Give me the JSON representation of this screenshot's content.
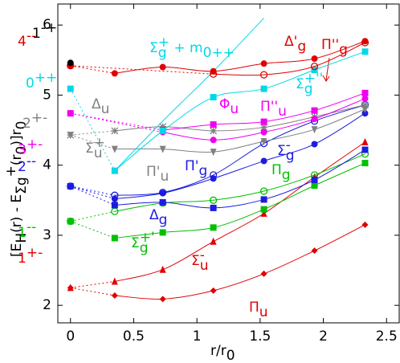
{
  "chart_data": {
    "type": "line",
    "x": [
      0,
      0.35,
      0.73,
      1.13,
      1.53,
      1.93,
      2.33
    ],
    "xlim": [
      -0.1,
      2.6
    ],
    "ylim": [
      1.75,
      6.3
    ],
    "xticks": [
      0,
      0.5,
      1,
      1.5,
      2,
      2.5
    ],
    "yticks": [
      2,
      3,
      4,
      5,
      6
    ],
    "xlabel": [
      {
        "text": "r/r"
      },
      {
        "text": "0",
        "sub": true
      }
    ],
    "ylabel": [
      {
        "text": "[E"
      },
      {
        "text": "H",
        "sub": true
      },
      {
        "text": "(r) - E"
      },
      {
        "text": "Σ",
        "sub": true
      },
      {
        "text": "g",
        "sub": true
      },
      {
        "text": "+",
        "sup": true
      },
      {
        "text": "(r"
      },
      {
        "text": "0",
        "sub": true
      },
      {
        "text": ")]r"
      },
      {
        "text": "0",
        "sub": true
      }
    ],
    "series": [
      {
        "color": "#e00000",
        "marker": "diamond",
        "values": [
          2.25,
          2.14,
          2.09,
          2.21,
          2.45,
          2.78,
          3.15
        ]
      },
      {
        "color": "#e00000",
        "marker": "triangle",
        "values": [
          2.25,
          2.34,
          2.51,
          2.91,
          3.31,
          3.83,
          4.33
        ]
      },
      {
        "color": "#00c000",
        "marker": "square",
        "values": [
          3.2,
          2.96,
          3.04,
          3.11,
          3.37,
          3.71,
          4.03
        ]
      },
      {
        "color": "#00c000",
        "marker": "open-circle",
        "values": [
          3.2,
          3.34,
          3.46,
          3.5,
          3.63,
          3.86,
          4.16
        ]
      },
      {
        "color": "#1c1ce0",
        "marker": "square",
        "values": [
          3.7,
          3.43,
          3.47,
          3.39,
          3.51,
          3.79,
          4.22
        ]
      },
      {
        "color": "#1c1ce0",
        "marker": "circle",
        "values": [
          3.7,
          3.52,
          3.6,
          3.81,
          4.06,
          4.3,
          4.74
        ]
      },
      {
        "color": "#1c1ce0",
        "marker": "open-circle",
        "values": [
          3.7,
          3.57,
          3.61,
          3.86,
          4.31,
          4.63,
          4.86
        ]
      },
      {
        "color": "#808080",
        "marker": "triangle-down",
        "values": [
          4.43,
          4.23,
          4.23,
          4.19,
          4.34,
          4.51,
          4.8
        ]
      },
      {
        "color": "#808080",
        "marker": "star",
        "values": [
          4.43,
          4.49,
          4.55,
          4.49,
          4.54,
          4.69,
          4.86
        ]
      },
      {
        "color": "#f000f0",
        "marker": "circle",
        "values": [
          4.74,
          null,
          4.47,
          4.36,
          4.47,
          4.66,
          4.95
        ]
      },
      {
        "color": "#f000f0",
        "marker": "square",
        "values": [
          4.74,
          null,
          4.5,
          4.58,
          4.62,
          4.78,
          5.03
        ]
      },
      {
        "color": "#00d8e8",
        "marker": "square",
        "values": [
          5.09,
          3.92,
          4.49,
          4.97,
          5.09,
          5.36,
          5.62
        ]
      },
      {
        "color": "#00d8e8",
        "marker": "none",
        "values": [
          null,
          3.92,
          4.63,
          5.34,
          6.1,
          null,
          null
        ]
      },
      {
        "color": "#e00000",
        "marker": "circle",
        "values": [
          5.42,
          5.31,
          5.4,
          5.34,
          5.45,
          5.52,
          5.77
        ]
      },
      {
        "color": "#e00000",
        "marker": "open-circle",
        "values": [
          5.42,
          null,
          null,
          5.3,
          5.29,
          5.41,
          5.75
        ]
      },
      {
        "color": "#000000",
        "marker": "circle",
        "values": [
          5.46,
          null,
          null,
          null,
          null,
          null,
          null
        ]
      }
    ],
    "annotations": [
      {
        "color": "#e00000",
        "segments": [
          {
            "text": "4"
          },
          {
            "text": "--",
            "sup": true
          }
        ]
      },
      {
        "color": "#000000",
        "segments": [
          {
            "text": "1"
          },
          {
            "text": "-+",
            "sup": true
          }
        ]
      },
      {
        "color": "#00d8e8",
        "segments": [
          {
            "text": "0"
          },
          {
            "text": "++",
            "sup": true
          }
        ]
      },
      {
        "color": "#808080",
        "segments": [
          {
            "text": "2"
          },
          {
            "text": "+-",
            "sup": true
          }
        ]
      },
      {
        "color": "#f000f0",
        "segments": [
          {
            "text": "3"
          },
          {
            "text": "+-",
            "sup": true
          }
        ]
      },
      {
        "color": "#1c1ce0",
        "segments": [
          {
            "text": "2"
          },
          {
            "text": "--",
            "sup": true
          }
        ]
      },
      {
        "color": "#00c000",
        "segments": [
          {
            "text": "1"
          },
          {
            "text": "--",
            "sup": true
          }
        ]
      },
      {
        "color": "#e00000",
        "segments": [
          {
            "text": "1"
          },
          {
            "text": "+-",
            "sup": true
          }
        ]
      },
      {
        "color": "#00d8e8",
        "segments": [
          {
            "text": "Σ"
          },
          {
            "text": "+",
            "sup": true
          },
          {
            "text": "g",
            "sub": true
          },
          {
            "text": " + m"
          },
          {
            "text": "0++",
            "sub": true
          }
        ]
      },
      {
        "color": "#e00000",
        "segments": [
          {
            "text": "Π''"
          },
          {
            "text": "g",
            "sub": true
          }
        ]
      },
      {
        "color": "#e00000",
        "segments": [
          {
            "text": "Δ'"
          },
          {
            "text": "g",
            "sub": true
          }
        ]
      },
      {
        "color": "#00d8e8",
        "segments": [
          {
            "text": "Σ"
          },
          {
            "text": "+''",
            "sup": true
          },
          {
            "text": "g",
            "sub": true
          }
        ]
      },
      {
        "color": "#f000f0",
        "segments": [
          {
            "text": "Φ"
          },
          {
            "text": "u",
            "sub": true
          }
        ]
      },
      {
        "color": "#f000f0",
        "segments": [
          {
            "text": "Π''"
          },
          {
            "text": "u",
            "sub": true
          }
        ]
      },
      {
        "color": "#808080",
        "segments": [
          {
            "text": "Δ"
          },
          {
            "text": "u",
            "sub": true
          }
        ]
      },
      {
        "color": "#808080",
        "segments": [
          {
            "text": "Σ"
          },
          {
            "text": "+",
            "sup": true
          },
          {
            "text": "u",
            "sub": true
          }
        ]
      },
      {
        "color": "#808080",
        "segments": [
          {
            "text": "Π'"
          },
          {
            "text": "u",
            "sub": true
          }
        ]
      },
      {
        "color": "#1c1ce0",
        "segments": [
          {
            "text": "Π'"
          },
          {
            "text": "g",
            "sub": true
          }
        ]
      },
      {
        "color": "#1c1ce0",
        "segments": [
          {
            "text": "Σ"
          },
          {
            "text": "-",
            "sup": true
          },
          {
            "text": "g",
            "sub": true
          }
        ]
      },
      {
        "color": "#00c000",
        "segments": [
          {
            "text": "Π"
          },
          {
            "text": "g",
            "sub": true
          }
        ]
      },
      {
        "color": "#1c1ce0",
        "segments": [
          {
            "text": "Δ"
          },
          {
            "text": "g",
            "sub": true
          }
        ]
      },
      {
        "color": "#00c000",
        "segments": [
          {
            "text": "Σ"
          },
          {
            "text": "+'",
            "sup": true
          },
          {
            "text": "g",
            "sub": true
          }
        ]
      },
      {
        "color": "#e00000",
        "segments": [
          {
            "text": "Σ"
          },
          {
            "text": "-",
            "sup": true
          },
          {
            "text": "u",
            "sub": true
          }
        ]
      },
      {
        "color": "#e00000",
        "segments": [
          {
            "text": "Π"
          },
          {
            "text": "u",
            "sub": true
          }
        ]
      }
    ]
  }
}
